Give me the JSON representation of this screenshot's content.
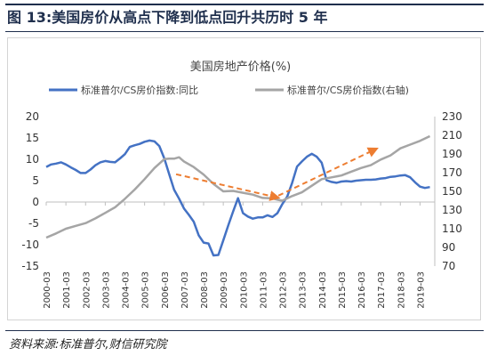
{
  "figure": {
    "title": "图 13:美国房价从高点下降到低点回升共历时 5 年",
    "source": "资料来源:标准普尔,财信研究院"
  },
  "chart_data": {
    "type": "line",
    "title": "美国房地产价格(%)",
    "series": [
      {
        "name": "标准普尔/CS房价指数:同比",
        "axis": "left",
        "color": "#4472c4",
        "x": [
          2000.0,
          2000.25,
          2000.5,
          2000.75,
          2001.0,
          2001.25,
          2001.5,
          2001.75,
          2002.0,
          2002.25,
          2002.5,
          2002.75,
          2003.0,
          2003.25,
          2003.5,
          2003.75,
          2004.0,
          2004.25,
          2004.5,
          2004.75,
          2005.0,
          2005.25,
          2005.5,
          2005.75,
          2006.0,
          2006.25,
          2006.5,
          2006.75,
          2007.0,
          2007.25,
          2007.5,
          2007.75,
          2008.0,
          2008.25,
          2008.5,
          2008.75,
          2009.0,
          2009.25,
          2009.5,
          2009.75,
          2010.0,
          2010.25,
          2010.5,
          2010.75,
          2011.0,
          2011.25,
          2011.5,
          2011.75,
          2012.0,
          2012.25,
          2012.5,
          2012.75,
          2013.0,
          2013.25,
          2013.5,
          2013.75,
          2014.0,
          2014.25,
          2014.5,
          2014.75,
          2015.0,
          2015.25,
          2015.5,
          2015.75,
          2016.0,
          2016.25,
          2016.5,
          2016.75,
          2017.0,
          2017.25,
          2017.5,
          2017.75,
          2018.0,
          2018.25,
          2018.5,
          2018.75,
          2019.0,
          2019.25,
          2019.5
        ],
        "y": [
          8.2,
          8.8,
          9.0,
          9.3,
          8.8,
          8.1,
          7.5,
          6.8,
          6.8,
          7.6,
          8.6,
          9.3,
          9.6,
          9.4,
          9.3,
          10.2,
          11.2,
          12.9,
          13.3,
          13.6,
          14.1,
          14.4,
          14.2,
          13.1,
          10.2,
          6.5,
          2.9,
          0.8,
          -1.5,
          -3.0,
          -4.6,
          -7.8,
          -9.5,
          -9.7,
          -12.5,
          -12.4,
          -9.0,
          -5.5,
          -2.2,
          0.9,
          -2.6,
          -3.4,
          -3.9,
          -3.6,
          -3.6,
          -3.1,
          -3.5,
          -2.6,
          -0.5,
          1.3,
          4.5,
          8.3,
          9.5,
          10.6,
          11.3,
          10.6,
          9.2,
          5.1,
          4.7,
          4.5,
          4.8,
          4.9,
          4.8,
          5.0,
          5.1,
          5.2,
          5.2,
          5.3,
          5.5,
          5.6,
          5.9,
          6.0,
          6.2,
          6.3,
          5.8,
          4.6,
          3.6,
          3.3,
          3.5
        ]
      },
      {
        "name": "标准普尔/CS房价指数(右轴)",
        "axis": "right",
        "color": "#a5a5a5",
        "x": [
          2000.0,
          2000.5,
          2001.0,
          2001.5,
          2002.0,
          2002.5,
          2003.0,
          2003.5,
          2004.0,
          2004.5,
          2005.0,
          2005.5,
          2006.0,
          2006.25,
          2006.5,
          2006.75,
          2007.0,
          2007.5,
          2008.0,
          2008.5,
          2009.0,
          2009.5,
          2010.0,
          2010.5,
          2011.0,
          2011.5,
          2011.75,
          2012.0,
          2012.5,
          2013.0,
          2013.5,
          2014.0,
          2014.5,
          2015.0,
          2015.5,
          2016.0,
          2016.5,
          2017.0,
          2017.5,
          2018.0,
          2018.5,
          2019.0,
          2019.5
        ],
        "y": [
          100.5,
          105,
          110,
          113,
          116,
          121,
          127,
          133,
          142,
          152,
          163,
          175,
          184.5,
          185,
          185,
          186.5,
          182,
          176,
          168,
          158,
          150,
          150.5,
          148.5,
          146.5,
          143,
          142.5,
          141,
          140,
          145,
          149,
          156,
          163,
          165,
          167,
          171,
          175,
          178,
          184,
          188.5,
          196,
          200,
          204,
          209
        ]
      }
    ],
    "x_ticks": [
      "2000-03",
      "2001-03",
      "2002-03",
      "2003-03",
      "2004-03",
      "2005-03",
      "2006-03",
      "2007-03",
      "2008-03",
      "2009-03",
      "2010-03",
      "2011-03",
      "2012-03",
      "2013-03",
      "2014-03",
      "2015-03",
      "2016-03",
      "2017-03",
      "2018-03",
      "2019-03"
    ],
    "xlim": [
      2000.0,
      2019.75
    ],
    "ylim_left": [
      -15,
      20
    ],
    "yticks_left": [
      20,
      15,
      10,
      5,
      0,
      -5,
      -10,
      -15
    ],
    "ylim_right": [
      70,
      230
    ],
    "yticks_right": [
      230,
      210,
      190,
      170,
      150,
      130,
      110,
      90,
      70
    ],
    "legend": "top",
    "grid": false,
    "annotations": [
      {
        "type": "dashed-arrow",
        "color": "#ed7d31",
        "from": [
          2006.6,
          6.5
        ],
        "to": [
          2011.8,
          1.0
        ]
      },
      {
        "type": "dashed-arrow",
        "color": "#ed7d31",
        "from": [
          2011.8,
          1.5
        ],
        "to": [
          2016.8,
          12.5
        ]
      }
    ]
  }
}
